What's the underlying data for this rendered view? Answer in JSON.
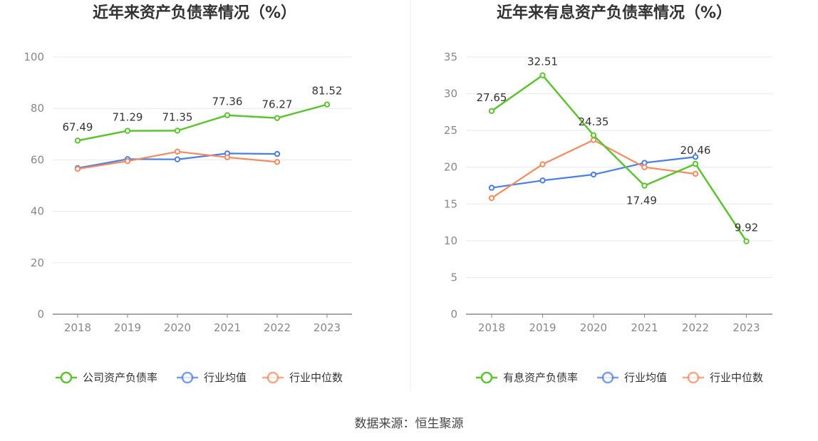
{
  "source": "数据来源：恒生聚源",
  "colors": {
    "company": "#5cc42f",
    "industry_avg": "#4a7fe3",
    "industry_median": "#f58a5f",
    "grid": "#e6e8f0",
    "axis": "#888888"
  },
  "chart_data": [
    {
      "type": "line",
      "title": "近年来资产负债率情况（%）",
      "categories": [
        "2018",
        "2019",
        "2020",
        "2021",
        "2022",
        "2023"
      ],
      "ylim": [
        0,
        100
      ],
      "yticks": [
        0,
        20,
        40,
        60,
        80,
        100
      ],
      "grid": true,
      "legend_position": "bottom",
      "series": [
        {
          "name": "公司资产负债率",
          "key": "company",
          "values": [
            67.49,
            71.29,
            71.35,
            77.36,
            76.27,
            81.52
          ],
          "labels": [
            "67.49",
            "71.29",
            "71.35",
            "77.36",
            "76.27",
            "81.52"
          ]
        },
        {
          "name": "行业均值",
          "key": "industry_avg",
          "values": [
            56.8,
            60.3,
            60.2,
            62.5,
            62.3,
            null
          ]
        },
        {
          "name": "行业中位数",
          "key": "industry_median",
          "values": [
            56.5,
            59.5,
            63.2,
            61.0,
            59.2,
            null
          ]
        }
      ]
    },
    {
      "type": "line",
      "title": "近年来有息资产负债率情况（%）",
      "categories": [
        "2018",
        "2019",
        "2020",
        "2021",
        "2022",
        "2023"
      ],
      "ylim": [
        0,
        35
      ],
      "yticks": [
        0,
        5,
        10,
        15,
        20,
        25,
        30,
        35
      ],
      "grid": true,
      "legend_position": "bottom",
      "series": [
        {
          "name": "有息资产负债率",
          "key": "company",
          "values": [
            27.65,
            32.51,
            24.35,
            17.49,
            20.46,
            9.92
          ],
          "labels": [
            "27.65",
            "32.51",
            "24.35",
            "17.49",
            "20.46",
            "9.92"
          ]
        },
        {
          "name": "行业均值",
          "key": "industry_avg",
          "values": [
            17.2,
            18.2,
            19.0,
            20.6,
            21.4,
            null
          ]
        },
        {
          "name": "行业中位数",
          "key": "industry_median",
          "values": [
            15.8,
            20.4,
            23.7,
            20.0,
            19.1,
            null
          ]
        }
      ]
    }
  ]
}
